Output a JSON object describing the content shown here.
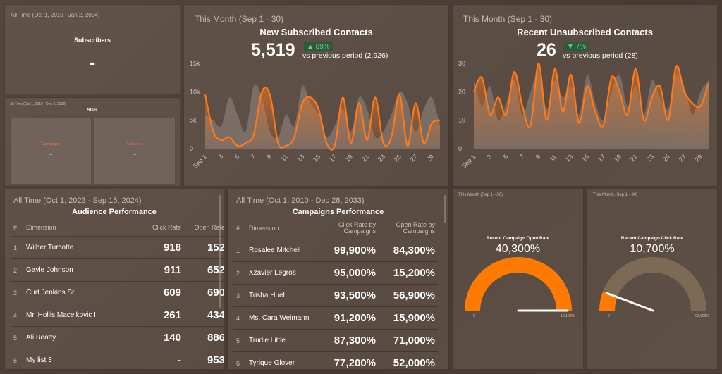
{
  "subscribers": {
    "period": "All Time (Oct 1, 2010 - Jan 2, 2034)",
    "title": "Subscribers",
    "value": "-"
  },
  "stats": {
    "period": "All Time (Oct 1, 2010 - Dec 3, 2033)",
    "title": "Stats",
    "cards": [
      {
        "label": "Campaigns",
        "value": "-"
      },
      {
        "label": "Audiences",
        "value": "-"
      }
    ]
  },
  "audience": {
    "period": "All Time (Oct 1, 2023 - Sep 15, 2024)",
    "title": "Audience Performance",
    "columns": [
      "#",
      "Dimension",
      "Click Rate",
      "Open Rate"
    ],
    "rows": [
      [
        "1",
        "Wilber Turcotte",
        "918",
        "152"
      ],
      [
        "2",
        "Gayle Johnson",
        "911",
        "652"
      ],
      [
        "3",
        "Curt Jenkins Sr.",
        "609",
        "690"
      ],
      [
        "4",
        "Mr. Hollis Macejkovic I",
        "261",
        "434"
      ],
      [
        "5",
        "Ali Beatty",
        "140",
        "886"
      ],
      [
        "6",
        "My list 3",
        "-",
        "953"
      ]
    ]
  },
  "campaigns": {
    "period": "All Time (Oct 1, 2010 - Dec 28, 2033)",
    "title": "Campaigns Performance",
    "columns": [
      "#",
      "Dimension",
      "Click Rate by Campaigns",
      "Open Rate by Campaigns"
    ],
    "rows": [
      [
        "1",
        "Rosalee Mitchell",
        "99,900%",
        "84,300%"
      ],
      [
        "2",
        "Xzavier Legros",
        "95,000%",
        "15,200%"
      ],
      [
        "3",
        "Trisha Huel",
        "93,500%",
        "56,900%"
      ],
      [
        "4",
        "Ms. Cara Weimann",
        "91,200%",
        "15,900%"
      ],
      [
        "5",
        "Trudie Little",
        "87,300%",
        "71,000%"
      ],
      [
        "6",
        "Tyrique Glover",
        "77,200%",
        "52,000%"
      ]
    ]
  },
  "chart_data": [
    {
      "type": "area",
      "period": "This Month (Sep 1 - 30)",
      "title": "New Subscribed Contacts",
      "kpi": "5,519",
      "change": "▲ 89%",
      "comparison": "vs previous period (2,926)",
      "categories": [
        "Sep 1",
        null,
        "3",
        null,
        "5",
        null,
        "7",
        null,
        "9",
        null,
        "11",
        null,
        "13",
        null,
        "15",
        null,
        "17",
        null,
        "19",
        null,
        "21",
        null,
        "23",
        null,
        "25",
        null,
        "27",
        null,
        "29",
        null
      ],
      "ylim": [
        0,
        15000
      ],
      "yticks": [
        0,
        {
          "value": 5000,
          "label": "5k"
        },
        {
          "value": 10000,
          "label": "10k"
        },
        {
          "value": 15000,
          "label": "15k"
        }
      ],
      "series": [
        {
          "color": "#a09590",
          "values": [
            6000,
            5000,
            4000,
            9000,
            6000,
            3000,
            11000,
            9000,
            3000,
            2000,
            6000,
            4000,
            11000,
            8000,
            6000,
            2000,
            4000,
            7000,
            3000,
            9000,
            7000,
            2000,
            3000,
            6000,
            10000,
            8000,
            3000,
            7000,
            9000,
            4000
          ]
        },
        {
          "color": "#ff7a1a",
          "values": [
            9500,
            3000,
            1500,
            2000,
            500,
            1000,
            2500,
            10000,
            9500,
            1000,
            500,
            2000,
            8000,
            9000,
            7000,
            1000,
            500,
            9000,
            1000,
            8000,
            1500,
            9000,
            1000,
            2000,
            9500,
            500,
            8000,
            1000,
            4500,
            5000
          ]
        }
      ]
    },
    {
      "type": "area",
      "period": "This Month (Sep 1 - 30)",
      "title": "Recent Unsubscribed Contacts",
      "kpi": "26",
      "change": "▼ 7%",
      "comparison": "vs previous period (28)",
      "categories": [
        "Sep 1",
        null,
        "3",
        null,
        "5",
        null,
        "7",
        null,
        "9",
        null,
        "11",
        null,
        "13",
        null,
        "15",
        null,
        "17",
        null,
        "19",
        null,
        "21",
        null,
        "23",
        null,
        "25",
        null,
        "27",
        null,
        "29",
        null
      ],
      "ylim": [
        0,
        30
      ],
      "yticks": [
        0,
        10,
        20,
        30
      ],
      "series": [
        {
          "color": "#a09590",
          "values": [
            24,
            15,
            22,
            10,
            16,
            24,
            12,
            20,
            27,
            14,
            24,
            18,
            22,
            12,
            26,
            16,
            10,
            20,
            26,
            15,
            22,
            12,
            24,
            18,
            14,
            26,
            22,
            12,
            20,
            24
          ]
        },
        {
          "color": "#ff7a1a",
          "values": [
            20,
            25,
            12,
            18,
            12,
            27,
            15,
            8,
            30,
            10,
            28,
            13,
            26,
            9,
            22,
            13,
            8,
            25,
            20,
            12,
            28,
            10,
            18,
            22,
            10,
            29,
            20,
            16,
            15,
            23
          ]
        }
      ]
    },
    {
      "type": "gauge",
      "period": "This Month (Sep 1 - 30)",
      "title": "Recent Campaign Open Rate",
      "value": 40300,
      "value_label": "40,300%",
      "min": 0,
      "max": 10100,
      "max_label": "10,100%",
      "color": "#ff7a00",
      "track_color": "#7d6a55"
    },
    {
      "type": "gauge",
      "period": "This Month (Sep 1 - 30)",
      "title": "Recent Campaign Click Rate",
      "value": 10700,
      "value_label": "10,700%",
      "min": 0,
      "max": 92600,
      "max_label": "92,600%",
      "color": "#ff7a00",
      "track_color": "#7d6a55"
    }
  ]
}
